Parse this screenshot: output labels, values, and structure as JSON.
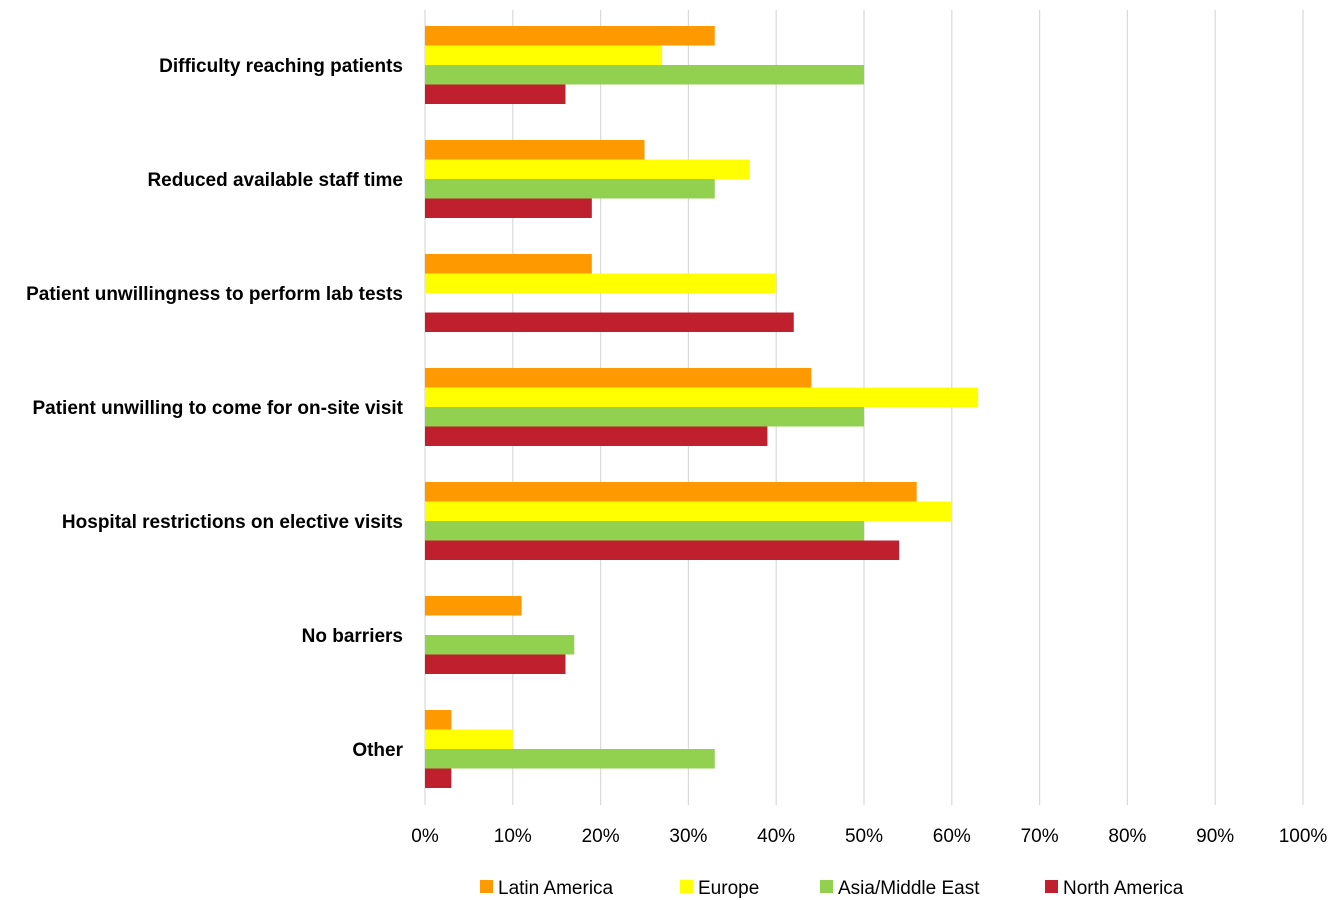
{
  "chart_data": {
    "type": "bar",
    "orientation": "horizontal",
    "categories": [
      "Difficulty reaching patients",
      "Reduced available staff time",
      "Patient unwillingness to perform lab tests",
      "Patient unwilling to come for on-site visit",
      "Hospital restrictions on elective visits",
      "No barriers",
      "Other"
    ],
    "series": [
      {
        "name": "Latin America",
        "color": "#ff9900",
        "values": [
          33,
          25,
          19,
          44,
          56,
          11,
          3
        ]
      },
      {
        "name": "Europe",
        "color": "#ffff00",
        "values": [
          27,
          37,
          40,
          63,
          60,
          0,
          10
        ]
      },
      {
        "name": "Asia/Middle East",
        "color": "#92d050",
        "values": [
          50,
          33,
          0,
          50,
          50,
          17,
          33
        ]
      },
      {
        "name": "North America",
        "color": "#c0202e",
        "values": [
          16,
          19,
          42,
          39,
          54,
          16,
          3
        ]
      }
    ],
    "xlim": [
      0,
      100
    ],
    "xticks": [
      "0%",
      "10%",
      "20%",
      "30%",
      "40%",
      "50%",
      "60%",
      "70%",
      "80%",
      "90%",
      "100%"
    ],
    "grid": true,
    "legend_position": "bottom"
  }
}
